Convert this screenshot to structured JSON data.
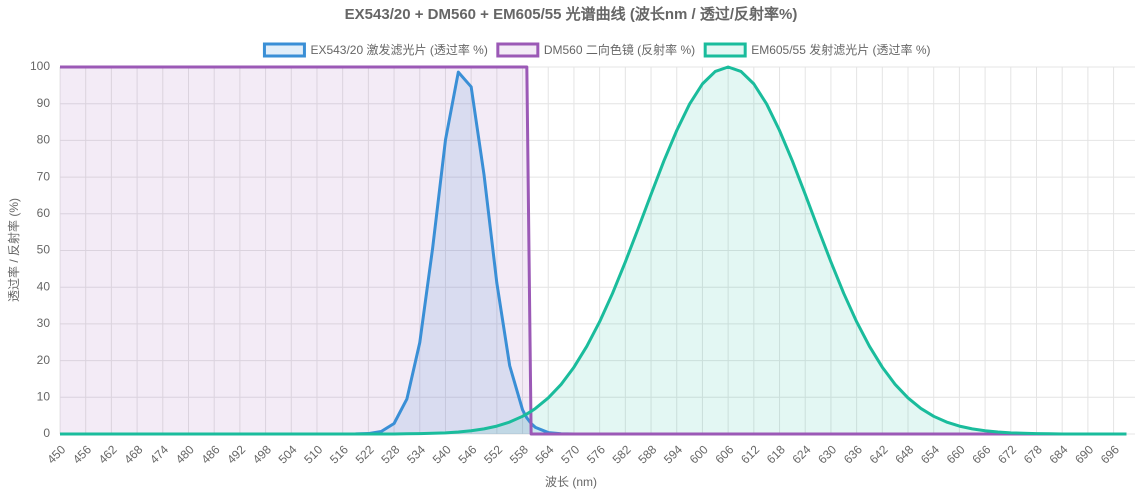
{
  "chart_data": {
    "type": "line",
    "title": "EX543/20 + DM560 + EM605/55 光谱曲线 (波长nm / 透过/反射率%)",
    "x_label": "波长 (nm)",
    "y_label": "透过率 / 反射率 (%)",
    "x": [
      450,
      453,
      456,
      459,
      462,
      465,
      468,
      471,
      474,
      477,
      480,
      483,
      486,
      489,
      492,
      495,
      498,
      501,
      504,
      507,
      510,
      513,
      516,
      519,
      522,
      525,
      528,
      531,
      534,
      537,
      540,
      543,
      546,
      549,
      552,
      555,
      558,
      559,
      560,
      561,
      564,
      567,
      570,
      573,
      576,
      579,
      582,
      585,
      588,
      591,
      594,
      597,
      600,
      603,
      606,
      609,
      612,
      615,
      618,
      621,
      624,
      627,
      630,
      633,
      636,
      639,
      642,
      645,
      648,
      651,
      654,
      657,
      660,
      663,
      666,
      669,
      672,
      675,
      678,
      681,
      684,
      687,
      690,
      693,
      696,
      699
    ],
    "series": [
      {
        "name": "EX543/20 激发滤光片 (透过率 %)",
        "color": "#3a8fd6",
        "fill": "rgba(58,143,214,0.15)",
        "values": [
          0,
          0,
          0,
          0,
          0,
          0,
          0,
          0,
          0,
          0,
          0,
          0,
          0,
          0,
          0,
          0,
          0,
          0,
          0,
          0,
          0,
          0,
          0,
          0.02,
          0.12,
          0.67,
          2.86,
          9.56,
          24.9,
          50.6,
          80.1,
          98.6,
          94.6,
          70.7,
          41.1,
          18.6,
          6.6,
          4.39,
          2.86,
          1.8,
          0.39,
          0.06,
          0,
          0,
          0,
          0,
          0,
          0,
          0,
          0,
          0,
          0,
          0,
          0,
          0,
          0,
          0,
          0,
          0,
          0,
          0,
          0,
          0,
          0,
          0,
          0,
          0,
          0,
          0,
          0,
          0,
          0,
          0,
          0,
          0,
          0,
          0,
          0,
          0,
          0,
          0,
          0,
          0,
          0,
          0,
          0
        ]
      },
      {
        "name": "DM560 二向色镜 (反射率 %)",
        "color": "#9b59b6",
        "fill": "rgba(155,89,182,0.12)",
        "values": [
          100,
          100,
          100,
          100,
          100,
          100,
          100,
          100,
          100,
          100,
          100,
          100,
          100,
          100,
          100,
          100,
          100,
          100,
          100,
          100,
          100,
          100,
          100,
          100,
          100,
          100,
          100,
          100,
          100,
          100,
          100,
          100,
          100,
          100,
          100,
          100,
          100,
          100,
          0,
          0,
          0,
          0,
          0,
          0,
          0,
          0,
          0,
          0,
          0,
          0,
          0,
          0,
          0,
          0,
          0,
          0,
          0,
          0,
          0,
          0,
          0,
          0,
          0,
          0,
          0,
          0,
          0,
          0,
          0,
          0,
          0,
          0,
          0,
          0,
          0,
          0,
          0,
          0,
          0,
          0,
          0,
          0,
          0,
          0,
          0,
          0
        ]
      },
      {
        "name": "EM605/55 发射滤光片 (透过率 %)",
        "color": "#1abc9c",
        "fill": "rgba(26,188,156,0.12)",
        "values": [
          0,
          0,
          0,
          0,
          0,
          0,
          0,
          0,
          0,
          0,
          0,
          0,
          0,
          0,
          0,
          0,
          0,
          0,
          0,
          0,
          0,
          0,
          0,
          0,
          0,
          0,
          0,
          0.06,
          0.11,
          0.19,
          0.32,
          0.54,
          0.88,
          1.39,
          2.15,
          3.26,
          4.82,
          5.47,
          6.18,
          6.96,
          9.82,
          13.5,
          18.2,
          23.9,
          30.6,
          38.3,
          46.9,
          56,
          65.3,
          74.4,
          82.7,
          89.9,
          95.4,
          98.8,
          100,
          98.8,
          95.4,
          89.9,
          82.7,
          74.4,
          65.3,
          56,
          46.9,
          38.3,
          30.6,
          23.9,
          18.2,
          13.5,
          9.82,
          6.96,
          4.82,
          3.26,
          2.15,
          1.39,
          0.88,
          0.54,
          0.32,
          0.19,
          0.11,
          0.06,
          0,
          0,
          0,
          0,
          0,
          0
        ]
      }
    ],
    "xlim": [
      450,
      701
    ],
    "ylim": [
      0,
      100
    ],
    "xticks": [
      450,
      456,
      462,
      468,
      474,
      480,
      486,
      492,
      498,
      504,
      510,
      516,
      522,
      528,
      534,
      540,
      546,
      552,
      558,
      564,
      570,
      576,
      582,
      588,
      594,
      600,
      606,
      612,
      618,
      624,
      630,
      636,
      642,
      648,
      654,
      660,
      666,
      672,
      678,
      684,
      690,
      696
    ],
    "yticks": [
      0,
      10,
      20,
      30,
      40,
      50,
      60,
      70,
      80,
      90,
      100
    ],
    "grid": true,
    "legend": "top"
  }
}
